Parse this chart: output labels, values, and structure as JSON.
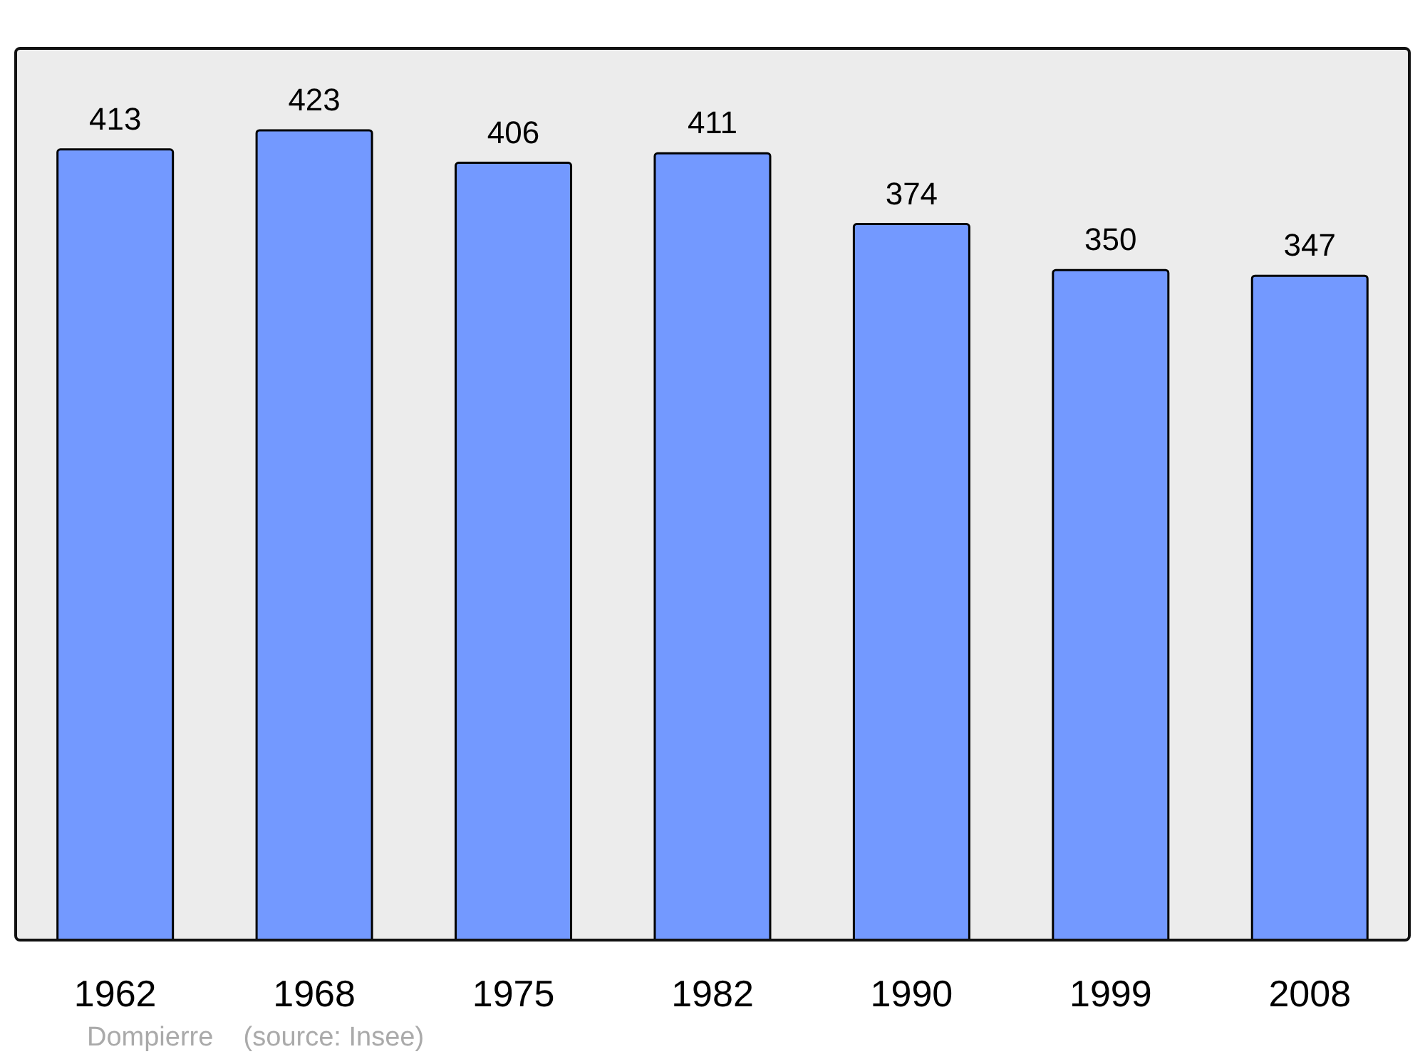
{
  "chart_data": {
    "type": "bar",
    "categories": [
      "1962",
      "1968",
      "1975",
      "1982",
      "1990",
      "1999",
      "2008"
    ],
    "values": [
      413,
      423,
      406,
      411,
      374,
      350,
      347
    ],
    "color": "#7399ff",
    "ylim": [
      0,
      465
    ],
    "tick_labels": "x",
    "data_labels": true,
    "grid": false,
    "annotations": [
      "Dompierre    (source: Insee)"
    ]
  }
}
